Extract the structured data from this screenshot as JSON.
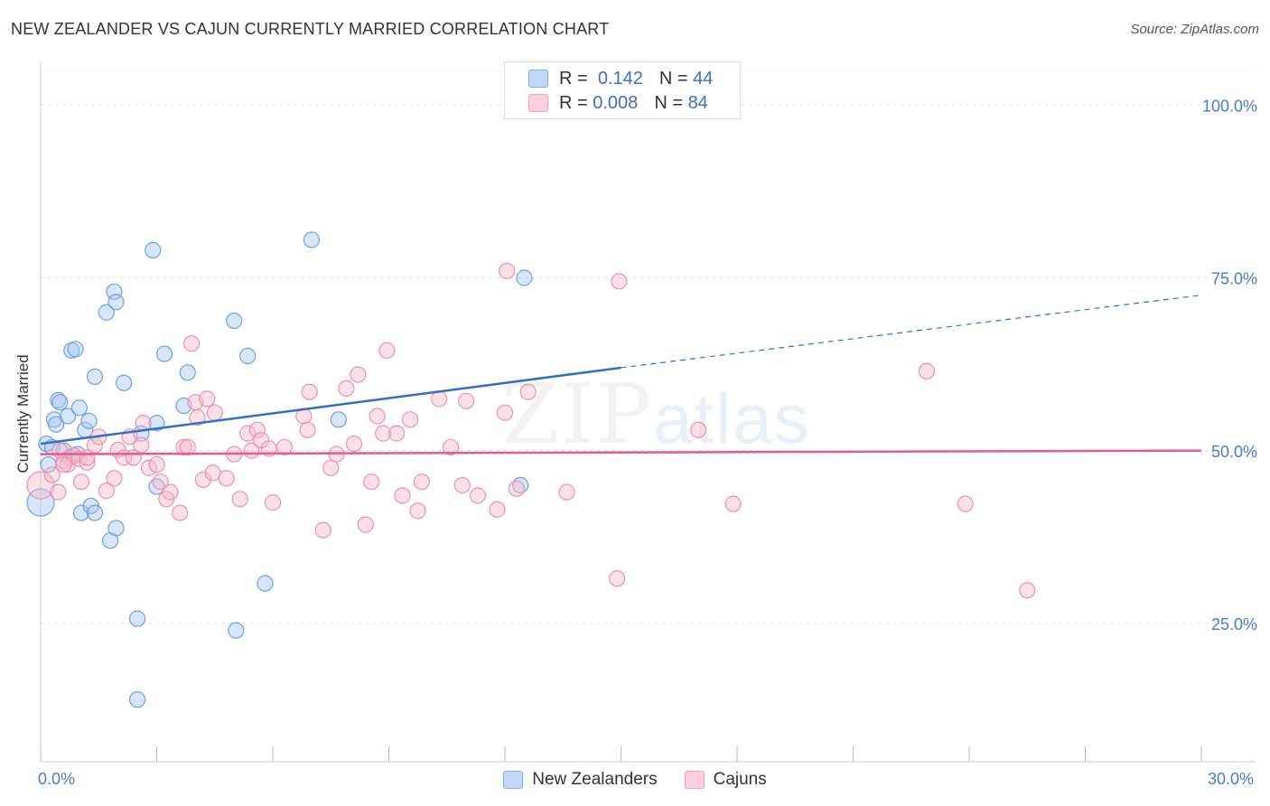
{
  "chart_data": {
    "type": "scatter",
    "title": "NEW ZEALANDER VS CAJUN CURRENTLY MARRIED CORRELATION CHART",
    "source": "Source: ZipAtlas.com",
    "xlabel": "",
    "ylabel": "Currently Married",
    "xlim": [
      0,
      30
    ],
    "ylim": [
      5,
      105
    ],
    "x_tick_labels": [
      "0.0%",
      "30.0%"
    ],
    "y_ticks": [
      25,
      50,
      75,
      100
    ],
    "y_tick_labels": [
      "25.0%",
      "50.0%",
      "75.0%",
      "100.0%"
    ],
    "grid": true,
    "watermark": "ZIPatlas",
    "legend": {
      "r_label": "R =",
      "n_label": "N =",
      "entries": [
        {
          "name": "New Zealanders",
          "r": "0.142",
          "n": "44",
          "color": "#7aaaf0"
        },
        {
          "name": "Cajuns",
          "r": "0.008",
          "n": "84",
          "color": "#f0a0bb"
        }
      ]
    },
    "series": [
      {
        "name": "New Zealanders",
        "fill": "#a9c8f2",
        "stroke": "#6f9fe0",
        "trend": {
          "x0": 0,
          "y0": 51.0,
          "x1": 15.0,
          "y1": 62.0,
          "dash_to": 30,
          "dash_y": 72.5,
          "color": "#2f6fc8"
        },
        "points": [
          [
            0.0,
            42.5
          ],
          [
            0.15,
            51.0
          ],
          [
            0.2,
            48.0
          ],
          [
            0.3,
            50.5
          ],
          [
            0.35,
            54.5
          ],
          [
            0.4,
            53.8
          ],
          [
            0.45,
            57.3
          ],
          [
            0.5,
            57.0
          ],
          [
            0.6,
            50.0
          ],
          [
            0.7,
            55.0
          ],
          [
            0.75,
            49.0
          ],
          [
            0.8,
            64.5
          ],
          [
            0.9,
            64.7
          ],
          [
            0.95,
            49.5
          ],
          [
            1.0,
            56.2
          ],
          [
            1.05,
            41.0
          ],
          [
            1.15,
            53.0
          ],
          [
            1.25,
            54.3
          ],
          [
            1.3,
            42.0
          ],
          [
            1.4,
            41.0
          ],
          [
            1.4,
            60.7
          ],
          [
            1.7,
            70.0
          ],
          [
            1.8,
            37.0
          ],
          [
            1.9,
            73.0
          ],
          [
            1.95,
            71.5
          ],
          [
            1.95,
            38.8
          ],
          [
            2.15,
            59.8
          ],
          [
            2.5,
            25.7
          ],
          [
            2.5,
            14.0
          ],
          [
            2.6,
            52.5
          ],
          [
            2.9,
            79.0
          ],
          [
            3.0,
            44.8
          ],
          [
            3.2,
            64.0
          ],
          [
            3.7,
            56.5
          ],
          [
            3.8,
            61.3
          ],
          [
            5.0,
            68.8
          ],
          [
            5.05,
            24.0
          ],
          [
            5.35,
            63.7
          ],
          [
            5.8,
            30.8
          ],
          [
            7.0,
            80.5
          ],
          [
            7.7,
            54.5
          ],
          [
            12.4,
            45.0
          ],
          [
            12.5,
            75.0
          ],
          [
            3.0,
            54.0
          ]
        ]
      },
      {
        "name": "Cajuns",
        "fill": "#f5bccd",
        "stroke": "#ec91ad",
        "trend": {
          "x0": 0,
          "y0": 49.5,
          "x1": 30,
          "y1": 50.0,
          "color": "#e85a8a"
        },
        "points": [
          [
            0.0,
            45.0
          ],
          [
            0.3,
            46.5
          ],
          [
            0.45,
            44.0
          ],
          [
            0.5,
            50.0
          ],
          [
            0.6,
            48.5
          ],
          [
            0.7,
            48.0
          ],
          [
            0.85,
            49.3
          ],
          [
            1.0,
            48.8
          ],
          [
            1.05,
            45.5
          ],
          [
            1.2,
            48.3
          ],
          [
            1.4,
            50.8
          ],
          [
            1.5,
            52.0
          ],
          [
            1.7,
            44.2
          ],
          [
            1.9,
            46.0
          ],
          [
            2.0,
            50.1
          ],
          [
            2.15,
            49.0
          ],
          [
            2.3,
            52.0
          ],
          [
            2.4,
            49.0
          ],
          [
            2.6,
            50.8
          ],
          [
            2.65,
            54.0
          ],
          [
            2.8,
            47.5
          ],
          [
            3.0,
            48.0
          ],
          [
            3.1,
            45.5
          ],
          [
            3.25,
            43.0
          ],
          [
            3.35,
            44.0
          ],
          [
            3.6,
            41.0
          ],
          [
            3.7,
            50.5
          ],
          [
            3.8,
            50.5
          ],
          [
            3.9,
            65.5
          ],
          [
            4.0,
            57.0
          ],
          [
            4.05,
            54.8
          ],
          [
            4.2,
            45.8
          ],
          [
            4.3,
            57.5
          ],
          [
            4.45,
            46.8
          ],
          [
            4.5,
            55.5
          ],
          [
            4.8,
            46.0
          ],
          [
            5.0,
            49.5
          ],
          [
            5.15,
            43.0
          ],
          [
            5.35,
            52.5
          ],
          [
            5.45,
            50.0
          ],
          [
            5.6,
            53.0
          ],
          [
            5.7,
            51.5
          ],
          [
            5.9,
            50.3
          ],
          [
            6.0,
            42.5
          ],
          [
            6.3,
            50.5
          ],
          [
            6.8,
            55.0
          ],
          [
            6.95,
            58.5
          ],
          [
            7.3,
            38.5
          ],
          [
            7.5,
            47.5
          ],
          [
            7.65,
            49.5
          ],
          [
            7.9,
            59.0
          ],
          [
            8.1,
            51.0
          ],
          [
            8.2,
            61.0
          ],
          [
            8.4,
            39.3
          ],
          [
            8.55,
            45.5
          ],
          [
            8.7,
            55.0
          ],
          [
            8.85,
            52.5
          ],
          [
            8.95,
            64.5
          ],
          [
            9.2,
            52.5
          ],
          [
            9.35,
            43.5
          ],
          [
            9.55,
            54.5
          ],
          [
            9.75,
            41.3
          ],
          [
            9.85,
            45.5
          ],
          [
            10.3,
            57.5
          ],
          [
            10.6,
            50.5
          ],
          [
            10.9,
            45.0
          ],
          [
            11.0,
            57.2
          ],
          [
            11.3,
            43.5
          ],
          [
            11.8,
            41.5
          ],
          [
            12.0,
            55.5
          ],
          [
            12.05,
            76.0
          ],
          [
            12.3,
            44.5
          ],
          [
            12.6,
            58.5
          ],
          [
            13.6,
            44.0
          ],
          [
            14.9,
            31.5
          ],
          [
            14.95,
            74.5
          ],
          [
            17.0,
            53.0
          ],
          [
            17.9,
            42.3
          ],
          [
            22.9,
            61.5
          ],
          [
            23.9,
            42.3
          ],
          [
            25.5,
            29.8
          ],
          [
            1.2,
            49.0
          ],
          [
            6.9,
            53.0
          ],
          [
            0.6,
            48.0
          ]
        ]
      }
    ]
  }
}
